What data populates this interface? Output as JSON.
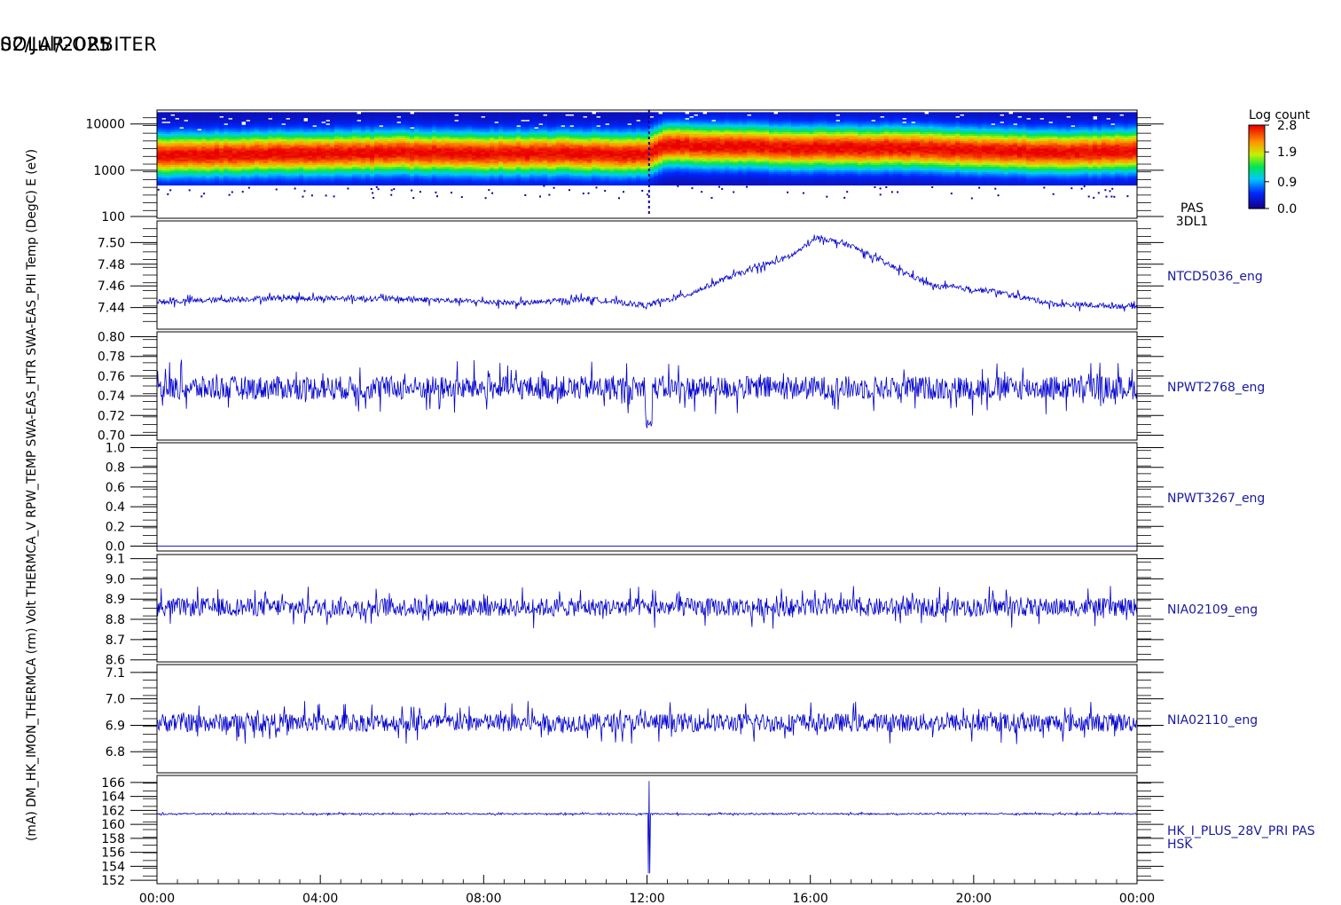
{
  "title": "SOLAR-ORBITER",
  "date": "02/Jul/2025",
  "colors": {
    "trace": "#0000cc",
    "label": "#1a1aa0",
    "axis": "#000000"
  },
  "chart_data": {
    "type": "line",
    "x_ticks": [
      "00:00",
      "04:00",
      "08:00",
      "12:00",
      "16:00",
      "20:00",
      "00:00"
    ],
    "xlim_hours": [
      0,
      24
    ],
    "colorbar": {
      "title": "Log count",
      "ticks": [
        "2.8",
        "1.9",
        "0.9",
        "0.0"
      ],
      "range": [
        0.0,
        2.8
      ],
      "colormap": "rainbow"
    },
    "panels": [
      {
        "type": "heatmap",
        "ylabel": "E (eV)",
        "label_lines": [
          "PAS",
          "3DL1"
        ],
        "yscale": "log",
        "ylim": [
          100,
          20000
        ],
        "y_ticks": [
          {
            "v": 10000,
            "t": "10000"
          },
          {
            "v": 1000,
            "t": "1000"
          },
          {
            "v": 100,
            "t": "100"
          }
        ],
        "peak_energy_eV": [
          [
            0,
            2100
          ],
          [
            2,
            2200
          ],
          [
            4,
            2300
          ],
          [
            6,
            2400
          ],
          [
            8,
            2300
          ],
          [
            10,
            2300
          ],
          [
            12,
            2200
          ],
          [
            12.5,
            3500
          ],
          [
            14,
            3300
          ],
          [
            16,
            3000
          ],
          [
            18,
            3000
          ],
          [
            20,
            2700
          ],
          [
            22,
            2400
          ],
          [
            24,
            2600
          ]
        ],
        "gap_hour": 12.05
      },
      {
        "type": "line",
        "ylabel": "Temp (DegC)",
        "label_lines": [
          "NTCD5036_eng"
        ],
        "ylim": [
          7.42,
          7.52
        ],
        "y_ticks": [
          {
            "v": 7.5,
            "t": "7.50"
          },
          {
            "v": 7.48,
            "t": "7.48"
          },
          {
            "v": 7.46,
            "t": "7.46"
          },
          {
            "v": 7.44,
            "t": "7.44"
          }
        ],
        "profile": [
          [
            0,
            7.445
          ],
          [
            3,
            7.449
          ],
          [
            6,
            7.448
          ],
          [
            9,
            7.444
          ],
          [
            10.5,
            7.448
          ],
          [
            12,
            7.442
          ],
          [
            13,
            7.452
          ],
          [
            14,
            7.468
          ],
          [
            15.5,
            7.487
          ],
          [
            16.2,
            7.505
          ],
          [
            17,
            7.497
          ],
          [
            18,
            7.478
          ],
          [
            19,
            7.46
          ],
          [
            20.5,
            7.455
          ],
          [
            22,
            7.443
          ],
          [
            24,
            7.441
          ]
        ],
        "noise": 0.0025
      },
      {
        "type": "line",
        "ylabel": "SWA-EAS_PHI",
        "label_lines": [
          "NPWT2768_eng"
        ],
        "ylim": [
          0.695,
          0.805
        ],
        "y_ticks": [
          {
            "v": 0.8,
            "t": "0.80"
          },
          {
            "v": 0.78,
            "t": "0.78"
          },
          {
            "v": 0.76,
            "t": "0.76"
          },
          {
            "v": 0.74,
            "t": "0.74"
          },
          {
            "v": 0.72,
            "t": "0.72"
          },
          {
            "v": 0.7,
            "t": "0.70"
          }
        ],
        "profile": [
          [
            0,
            0.748
          ],
          [
            24,
            0.748
          ]
        ],
        "noise": 0.012,
        "dip": {
          "hour": 12.05,
          "value": 0.707
        }
      },
      {
        "type": "line",
        "ylabel": "SWA-EAS_HTR",
        "label_lines": [
          "NPWT3267_eng"
        ],
        "ylim": [
          -0.05,
          1.05
        ],
        "y_ticks": [
          {
            "v": 1.0,
            "t": "1.0"
          },
          {
            "v": 0.8,
            "t": "0.8"
          },
          {
            "v": 0.6,
            "t": "0.6"
          },
          {
            "v": 0.4,
            "t": "0.4"
          },
          {
            "v": 0.2,
            "t": "0.2"
          },
          {
            "v": 0.0,
            "t": "0.0"
          }
        ],
        "profile": [
          [
            0,
            0.0
          ],
          [
            24,
            0.0
          ]
        ],
        "noise": 0.0
      },
      {
        "type": "line",
        "ylabel": "RPW_TEMP",
        "label_lines": [
          "NIA02109_eng"
        ],
        "ylim": [
          8.59,
          9.12
        ],
        "y_ticks": [
          {
            "v": 9.1,
            "t": "9.1"
          },
          {
            "v": 9.0,
            "t": "9.0"
          },
          {
            "v": 8.9,
            "t": "8.9"
          },
          {
            "v": 8.8,
            "t": "8.8"
          },
          {
            "v": 8.7,
            "t": "8.7"
          },
          {
            "v": 8.6,
            "t": "8.6"
          }
        ],
        "profile": [
          [
            0,
            8.86
          ],
          [
            24,
            8.86
          ]
        ],
        "noise": 0.045
      },
      {
        "type": "line",
        "ylabel": "THERMCA",
        "label_lines": [
          "NIA02110_eng"
        ],
        "ylim": [
          6.72,
          7.13
        ],
        "y_ticks": [
          {
            "v": 7.1,
            "t": "7.1"
          },
          {
            "v": 7.0,
            "t": "7.0"
          },
          {
            "v": 6.9,
            "t": "6.9"
          },
          {
            "v": 6.8,
            "t": "6.8"
          }
        ],
        "profile": [
          [
            0,
            6.91
          ],
          [
            24,
            6.91
          ]
        ],
        "noise": 0.035
      },
      {
        "type": "line",
        "ylabel": "(mA)",
        "label_lines": [
          "HK_I_PLUS_28V_PRI PAS",
          "HSK"
        ],
        "ylim": [
          151.5,
          167
        ],
        "y_ticks": [
          {
            "v": 166,
            "t": "166"
          },
          {
            "v": 164,
            "t": "164"
          },
          {
            "v": 162,
            "t": "162"
          },
          {
            "v": 160,
            "t": "160"
          },
          {
            "v": 158,
            "t": "158"
          },
          {
            "v": 156,
            "t": "156"
          },
          {
            "v": 154,
            "t": "154"
          },
          {
            "v": 152,
            "t": "152"
          }
        ],
        "profile": [
          [
            0,
            161.5
          ],
          [
            24,
            161.5
          ]
        ],
        "noise": 0.1,
        "spike": {
          "hour": 12.05,
          "low": 153.0,
          "high": 166.2
        }
      }
    ],
    "overlapping_ylabel_text": "(mA) DM_HK_IMON_THERMCA (rm) Volt THERMCA_V RPW_TEMP SWA-EAS_HTR SWA-EAS_PHI Temp (DegC) E (eV)"
  }
}
